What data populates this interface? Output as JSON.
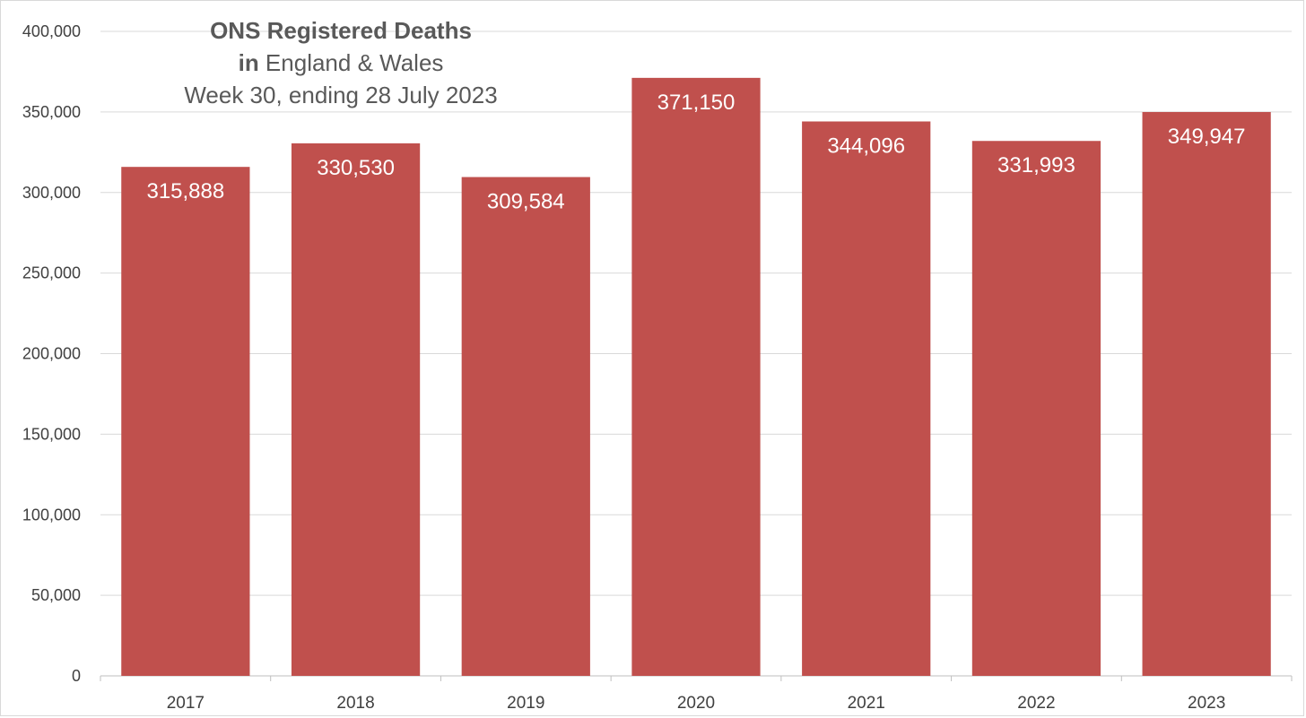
{
  "chart_data": {
    "type": "bar",
    "title_line1": "ONS Registered Deaths",
    "title_line2_bold": "in",
    "title_line2_rest": " England & Wales",
    "title_line3": "Week 30, ending 28 July 2023",
    "categories": [
      "2017",
      "2018",
      "2019",
      "2020",
      "2021",
      "2022",
      "2023"
    ],
    "values": [
      315888,
      330530,
      309584,
      371150,
      344096,
      331993,
      349947
    ],
    "data_labels": [
      "315,888",
      "330,530",
      "309,584",
      "371,150",
      "344,096",
      "331,993",
      "349,947"
    ],
    "y_ticks": [
      0,
      50000,
      100000,
      150000,
      200000,
      250000,
      300000,
      350000,
      400000
    ],
    "y_tick_labels": [
      "0",
      "50,000",
      "100,000",
      "150,000",
      "200,000",
      "250,000",
      "300,000",
      "350,000",
      "400,000"
    ],
    "ylim": [
      0,
      400000
    ],
    "xlabel": "",
    "ylabel": "",
    "grid": true,
    "legend": "none",
    "bar_color": "#c0504d"
  }
}
